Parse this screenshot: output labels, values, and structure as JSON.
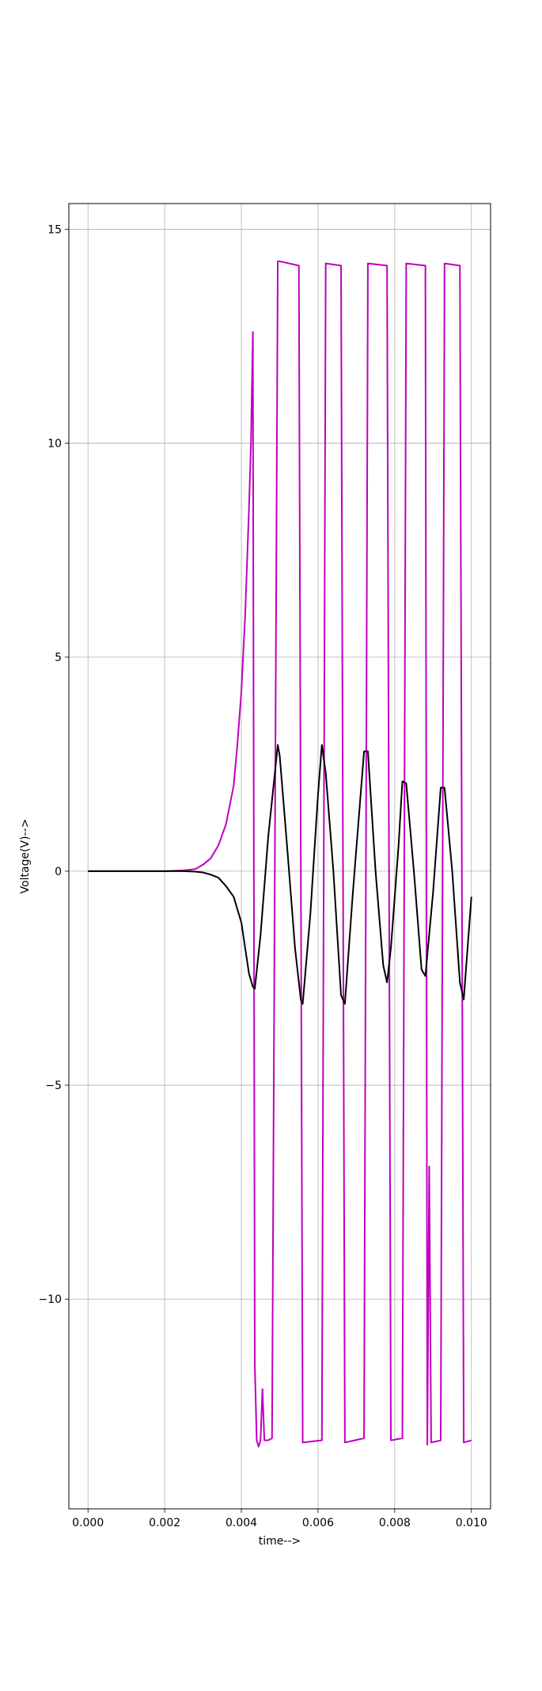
{
  "chart_data": {
    "type": "line",
    "title": "",
    "xlabel": "time-->",
    "ylabel": "Voltage(V)-->",
    "xlim": [
      -0.0005,
      0.0105
    ],
    "ylim": [
      -14.9,
      15.6
    ],
    "grid": true,
    "legend": "none",
    "xticks": [
      0.0,
      0.002,
      0.004,
      0.006,
      0.008,
      0.01
    ],
    "xtick_labels": [
      "0.000",
      "0.002",
      "0.004",
      "0.006",
      "0.008",
      "0.010"
    ],
    "yticks": [
      -10,
      -5,
      0,
      5,
      10,
      15
    ],
    "ytick_labels": [
      "−10",
      "−5",
      "0",
      "5",
      "10",
      "15"
    ],
    "series": [
      {
        "color": "#bf00bf",
        "x": [
          0.0,
          0.001,
          0.002,
          0.0025,
          0.0028,
          0.003,
          0.0032,
          0.0034,
          0.0036,
          0.0038,
          0.0039,
          0.004,
          0.0041,
          0.0042,
          0.00425,
          0.0043,
          0.00435,
          0.0044,
          0.00445,
          0.0045,
          0.00455,
          0.0046,
          0.00465,
          0.0047,
          0.0048,
          0.00495,
          0.005,
          0.0055,
          0.0056,
          0.0061,
          0.0062,
          0.0066,
          0.0067,
          0.0072,
          0.0073,
          0.0078,
          0.0079,
          0.0082,
          0.0083,
          0.0088,
          0.00885,
          0.0089,
          0.00895,
          0.0092,
          0.0093,
          0.0097,
          0.0098,
          0.01
        ],
        "y": [
          0.0,
          0.0,
          0.0,
          0.02,
          0.05,
          0.15,
          0.3,
          0.6,
          1.1,
          2.0,
          3.0,
          4.2,
          6.0,
          8.5,
          10.0,
          12.6,
          -11.5,
          -13.3,
          -13.45,
          -13.3,
          -12.1,
          -13.3,
          -13.3,
          -13.3,
          -13.25,
          14.25,
          14.25,
          14.15,
          -13.35,
          -13.3,
          14.2,
          14.15,
          -13.35,
          -13.25,
          14.2,
          14.15,
          -13.3,
          -13.25,
          14.2,
          14.15,
          -13.4,
          -6.9,
          -13.35,
          -13.3,
          14.2,
          14.15,
          -13.35,
          -13.3
        ]
      },
      {
        "color": "#000000",
        "x": [
          0.0,
          0.001,
          0.002,
          0.0025,
          0.0028,
          0.003,
          0.0032,
          0.0034,
          0.0036,
          0.0038,
          0.004,
          0.0041,
          0.0042,
          0.0043,
          0.00435,
          0.0045,
          0.0047,
          0.00495,
          0.005,
          0.0052,
          0.0054,
          0.00555,
          0.0056,
          0.0058,
          0.006,
          0.0061,
          0.0062,
          0.0064,
          0.0066,
          0.0067,
          0.0069,
          0.0072,
          0.0073,
          0.0075,
          0.0077,
          0.0078,
          0.0079,
          0.0081,
          0.0082,
          0.0083,
          0.0085,
          0.0087,
          0.0088,
          0.009,
          0.0092,
          0.0093,
          0.0095,
          0.0097,
          0.0098,
          0.01
        ],
        "y": [
          0.0,
          0.0,
          0.0,
          0.0,
          -0.01,
          -0.03,
          -0.08,
          -0.15,
          -0.35,
          -0.6,
          -1.2,
          -1.8,
          -2.4,
          -2.7,
          -2.75,
          -1.5,
          0.8,
          2.95,
          2.7,
          0.5,
          -1.8,
          -3.0,
          -3.1,
          -1.0,
          1.8,
          2.95,
          2.3,
          0.0,
          -2.9,
          -3.1,
          -0.6,
          2.8,
          2.8,
          0.0,
          -2.2,
          -2.6,
          -1.8,
          0.6,
          2.1,
          2.05,
          0.0,
          -2.3,
          -2.45,
          -0.5,
          1.95,
          1.95,
          0.0,
          -2.6,
          -3.0,
          -0.6
        ]
      }
    ]
  }
}
